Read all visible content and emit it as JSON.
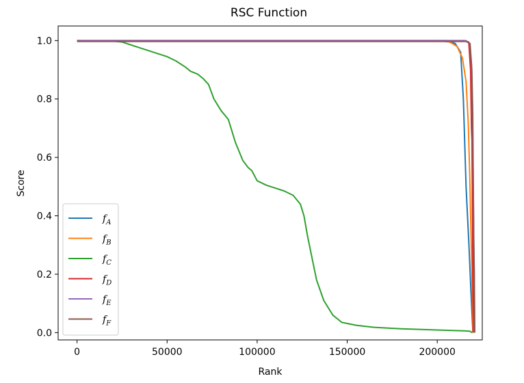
{
  "chart_data": {
    "type": "line",
    "title": "RSC Function",
    "xlabel": "Rank",
    "ylabel": "Score",
    "xlim": [
      -10500,
      225000
    ],
    "ylim": [
      -0.025,
      1.05
    ],
    "xticks": [
      0,
      50000,
      100000,
      150000,
      200000
    ],
    "xtick_labels": [
      "0",
      "50000",
      "100000",
      "150000",
      "200000"
    ],
    "yticks": [
      0.0,
      0.2,
      0.4,
      0.6,
      0.8,
      1.0
    ],
    "ytick_labels": [
      "0.0",
      "0.2",
      "0.4",
      "0.6",
      "0.8",
      "1.0"
    ],
    "grid": false,
    "legend_position": "lower-left",
    "series": [
      {
        "name": "f_A",
        "name_base": "f",
        "name_sub": "A",
        "color": "#1f77b4",
        "points": [
          [
            0,
            1.0
          ],
          [
            205000,
            1.0
          ],
          [
            210000,
            0.99
          ],
          [
            213000,
            0.96
          ],
          [
            214500,
            0.8
          ],
          [
            215500,
            0.6
          ],
          [
            216000,
            0.5
          ],
          [
            216800,
            0.4
          ],
          [
            217600,
            0.3
          ],
          [
            218300,
            0.2
          ],
          [
            219000,
            0.1
          ],
          [
            219800,
            0.0
          ]
        ]
      },
      {
        "name": "f_B",
        "name_base": "f",
        "name_sub": "B",
        "color": "#ff7f0e",
        "points": [
          [
            0,
            1.0
          ],
          [
            200000,
            1.0
          ],
          [
            207000,
            0.995
          ],
          [
            211000,
            0.98
          ],
          [
            214000,
            0.94
          ],
          [
            216000,
            0.86
          ],
          [
            217200,
            0.72
          ],
          [
            218000,
            0.55
          ],
          [
            218700,
            0.35
          ],
          [
            219300,
            0.2
          ],
          [
            219800,
            0.0
          ]
        ]
      },
      {
        "name": "f_C",
        "name_base": "f",
        "name_sub": "C",
        "color": "#2ca02c",
        "points": [
          [
            0,
            1.0
          ],
          [
            20000,
            0.998
          ],
          [
            25000,
            0.995
          ],
          [
            30000,
            0.985
          ],
          [
            35000,
            0.975
          ],
          [
            40000,
            0.965
          ],
          [
            45000,
            0.955
          ],
          [
            50000,
            0.945
          ],
          [
            55000,
            0.93
          ],
          [
            60000,
            0.91
          ],
          [
            63000,
            0.895
          ],
          [
            67000,
            0.885
          ],
          [
            70000,
            0.87
          ],
          [
            73000,
            0.85
          ],
          [
            76000,
            0.8
          ],
          [
            80000,
            0.76
          ],
          [
            84000,
            0.73
          ],
          [
            88000,
            0.65
          ],
          [
            92000,
            0.59
          ],
          [
            95000,
            0.565
          ],
          [
            97000,
            0.555
          ],
          [
            100000,
            0.52
          ],
          [
            105000,
            0.505
          ],
          [
            110000,
            0.495
          ],
          [
            115000,
            0.485
          ],
          [
            120000,
            0.47
          ],
          [
            124000,
            0.44
          ],
          [
            126000,
            0.4
          ],
          [
            128000,
            0.33
          ],
          [
            130000,
            0.27
          ],
          [
            133000,
            0.18
          ],
          [
            137000,
            0.11
          ],
          [
            142000,
            0.06
          ],
          [
            147000,
            0.035
          ],
          [
            155000,
            0.025
          ],
          [
            165000,
            0.018
          ],
          [
            180000,
            0.013
          ],
          [
            200000,
            0.009
          ],
          [
            215000,
            0.006
          ],
          [
            218000,
            0.005
          ],
          [
            219500,
            0.0
          ]
        ]
      },
      {
        "name": "f_D",
        "name_base": "f",
        "name_sub": "D",
        "color": "#d62728",
        "points": [
          [
            0,
            1.0
          ],
          [
            215000,
            1.0
          ],
          [
            217500,
            0.995
          ],
          [
            218500,
            0.9
          ],
          [
            219000,
            0.7
          ],
          [
            219300,
            0.66
          ],
          [
            219500,
            0.45
          ],
          [
            219800,
            0.2
          ],
          [
            220000,
            0.0
          ]
        ]
      },
      {
        "name": "f_E",
        "name_base": "f",
        "name_sub": "E",
        "color": "#9467bd",
        "points": [
          [
            0,
            1.0
          ],
          [
            216000,
            1.0
          ],
          [
            218000,
            0.99
          ],
          [
            219000,
            0.92
          ],
          [
            219600,
            0.75
          ],
          [
            220000,
            0.5
          ],
          [
            220300,
            0.3
          ],
          [
            220600,
            0.2
          ],
          [
            220800,
            0.0
          ]
        ]
      },
      {
        "name": "f_F",
        "name_base": "f",
        "name_sub": "F",
        "color": "#8c564b",
        "points": [
          [
            0,
            0.997
          ],
          [
            216000,
            0.997
          ],
          [
            218200,
            0.99
          ],
          [
            219200,
            0.9
          ],
          [
            219700,
            0.75
          ],
          [
            220000,
            0.5
          ],
          [
            220300,
            0.3
          ],
          [
            220600,
            0.15
          ],
          [
            220800,
            0.0
          ]
        ]
      }
    ]
  }
}
